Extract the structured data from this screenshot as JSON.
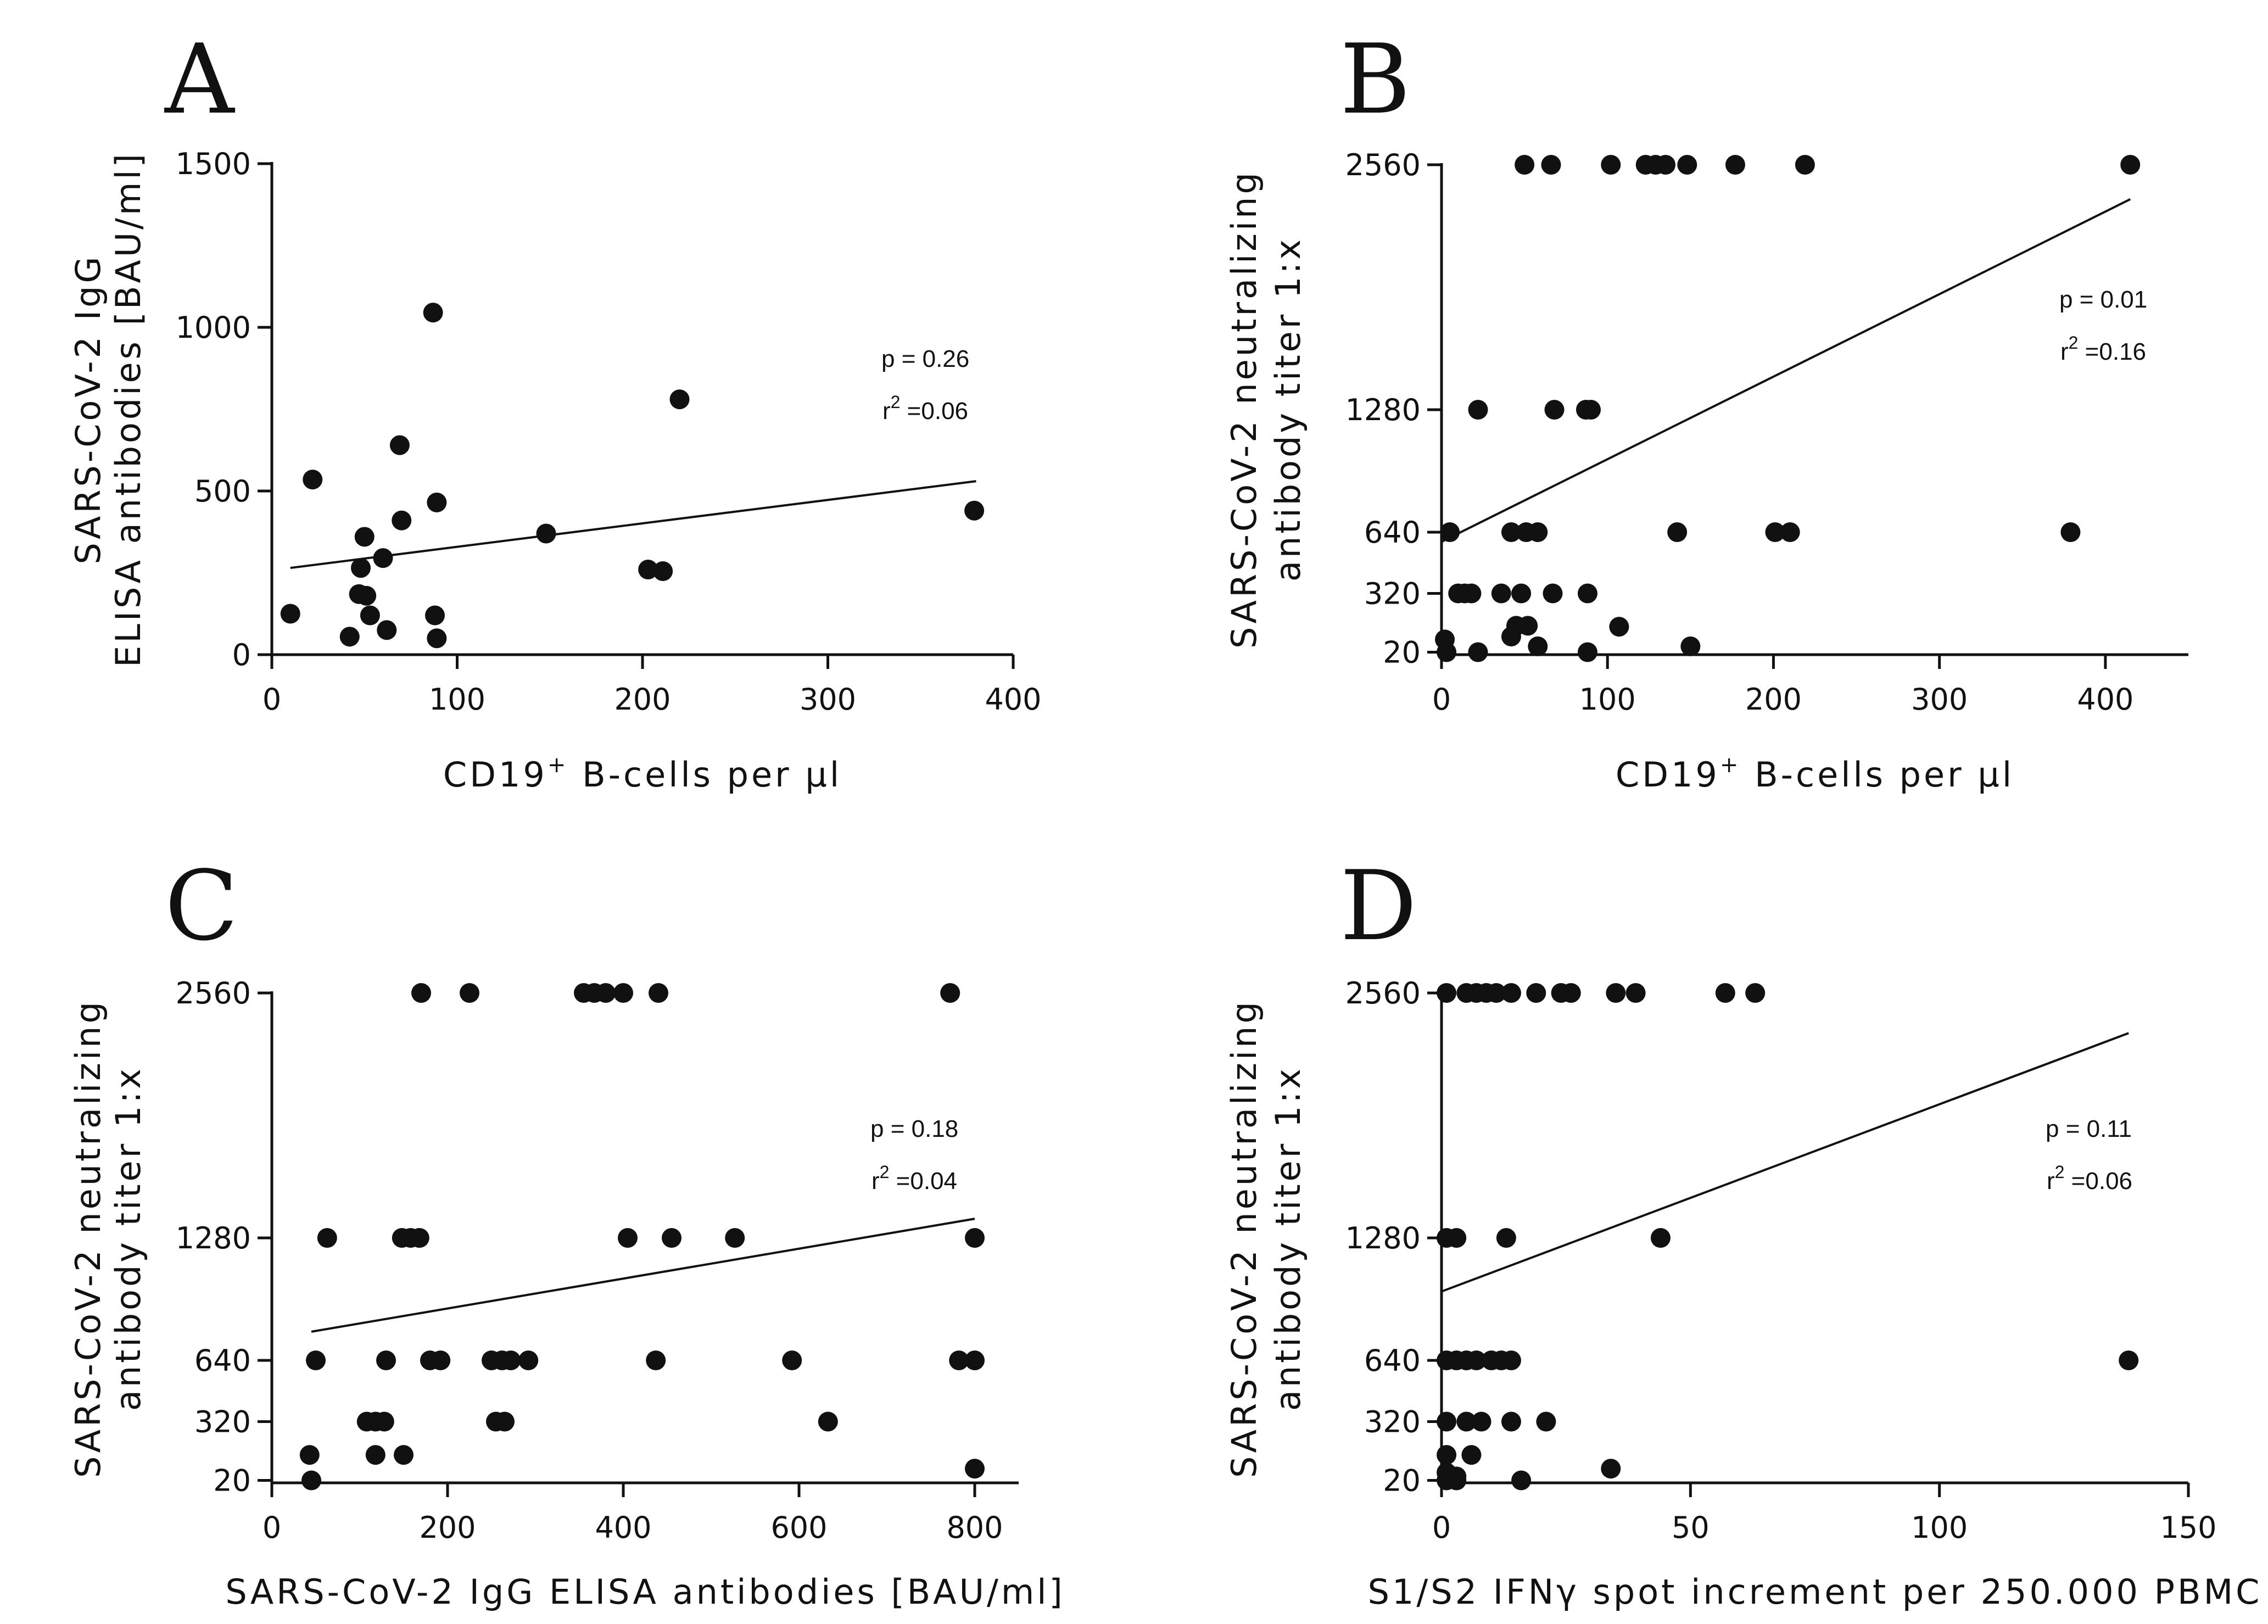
{
  "chart_data": [
    {
      "id": "A",
      "type": "scatter",
      "panel_label": "A",
      "xlabel_main": "CD19",
      "xlabel_sup": "+",
      "xlabel_rest": " B-cells per µl",
      "ylabel_lines": [
        "SARS-CoV-2 IgG",
        "ELISA antibodies [BAU/ml]"
      ],
      "xlim": [
        0,
        400
      ],
      "ylim": [
        0,
        1500
      ],
      "xticks": [
        0,
        100,
        200,
        300,
        400
      ],
      "yticks": [
        0,
        500,
        1000,
        1500
      ],
      "y_tick_labels": [
        "0",
        "500",
        "1000",
        "1500"
      ],
      "stats": {
        "p": "p = 0.26",
        "r2_prefix": "r",
        "r2_sup": "2",
        "r2_value": " =0.06"
      },
      "regression": [
        [
          10,
          265
        ],
        [
          380,
          530
        ]
      ],
      "points": [
        [
          10,
          125
        ],
        [
          22,
          535
        ],
        [
          42,
          55
        ],
        [
          47,
          185
        ],
        [
          48,
          265
        ],
        [
          50,
          360
        ],
        [
          51,
          180
        ],
        [
          53,
          120
        ],
        [
          60,
          295
        ],
        [
          62,
          75
        ],
        [
          70,
          410
        ],
        [
          69,
          640
        ],
        [
          87,
          1045
        ],
        [
          89,
          465
        ],
        [
          88,
          120
        ],
        [
          89,
          50
        ],
        [
          148,
          370
        ],
        [
          203,
          260
        ],
        [
          211,
          255
        ],
        [
          220,
          780
        ],
        [
          379,
          440
        ]
      ]
    },
    {
      "id": "B",
      "type": "scatter",
      "panel_label": "B",
      "xlabel_main": "CD19",
      "xlabel_sup": "+",
      "xlabel_rest": " B-cells per µl",
      "ylabel_lines": [
        "SARS-CoV-2 neutralizing",
        "antibody titer 1:x"
      ],
      "xlim": [
        0,
        450
      ],
      "ylim": [
        0,
        2600
      ],
      "xticks": [
        0,
        100,
        200,
        300,
        400
      ],
      "yticks": [
        20,
        320,
        640,
        1280,
        2560
      ],
      "y_tick_labels": [
        "20",
        "320",
        "640",
        "1280",
        "2560"
      ],
      "stats": {
        "p": "p = 0.01",
        "r2_prefix": "r",
        "r2_sup": "2",
        "r2_value": " =0.16"
      },
      "regression": [
        [
          0,
          590
        ],
        [
          415,
          2380
        ]
      ],
      "points": [
        [
          50,
          2560
        ],
        [
          66,
          2560
        ],
        [
          102,
          2560
        ],
        [
          123,
          2560
        ],
        [
          129,
          2560
        ],
        [
          135,
          2560
        ],
        [
          148,
          2560
        ],
        [
          177,
          2560
        ],
        [
          219,
          2560
        ],
        [
          415,
          2560
        ],
        [
          22,
          1280
        ],
        [
          68,
          1280
        ],
        [
          87,
          1280
        ],
        [
          90,
          1280
        ],
        [
          5,
          640
        ],
        [
          42,
          640
        ],
        [
          51,
          640
        ],
        [
          58,
          640
        ],
        [
          142,
          640
        ],
        [
          201,
          640
        ],
        [
          210,
          640
        ],
        [
          379,
          640
        ],
        [
          10,
          320
        ],
        [
          14,
          320
        ],
        [
          18,
          320
        ],
        [
          36,
          320
        ],
        [
          48,
          320
        ],
        [
          67,
          320
        ],
        [
          88,
          320
        ],
        [
          2,
          85
        ],
        [
          3,
          20
        ],
        [
          22,
          20
        ],
        [
          42,
          100
        ],
        [
          45,
          155
        ],
        [
          52,
          155
        ],
        [
          58,
          50
        ],
        [
          88,
          20
        ],
        [
          107,
          150
        ],
        [
          150,
          50
        ]
      ]
    },
    {
      "id": "C",
      "type": "scatter",
      "panel_label": "C",
      "xlabel_main": "SARS-CoV-2 IgG ELISA antibodies [BAU/ml]",
      "xlabel_sup": "",
      "xlabel_rest": "",
      "ylabel_lines": [
        "SARS-CoV-2 neutralizing",
        "antibody titer 1:x"
      ],
      "xlim": [
        0,
        850
      ],
      "ylim": [
        0,
        2600
      ],
      "xticks": [
        0,
        200,
        400,
        600,
        800
      ],
      "yticks": [
        20,
        320,
        640,
        1280,
        2560
      ],
      "y_tick_labels": [
        "20",
        "320",
        "640",
        "1280",
        "2560"
      ],
      "stats": {
        "p": "p = 0.18",
        "r2_prefix": "r",
        "r2_sup": "2",
        "r2_value": " =0.04"
      },
      "regression": [
        [
          45,
          790
        ],
        [
          800,
          1380
        ]
      ],
      "points": [
        [
          170,
          2560
        ],
        [
          225,
          2560
        ],
        [
          355,
          2560
        ],
        [
          367,
          2560
        ],
        [
          380,
          2560
        ],
        [
          400,
          2560
        ],
        [
          440,
          2560
        ],
        [
          772,
          2560
        ],
        [
          63,
          1280
        ],
        [
          148,
          1280
        ],
        [
          158,
          1280
        ],
        [
          168,
          1280
        ],
        [
          405,
          1280
        ],
        [
          455,
          1280
        ],
        [
          527,
          1280
        ],
        [
          800,
          1280
        ],
        [
          50,
          640
        ],
        [
          130,
          640
        ],
        [
          180,
          640
        ],
        [
          192,
          640
        ],
        [
          250,
          640
        ],
        [
          262,
          640
        ],
        [
          272,
          640
        ],
        [
          292,
          640
        ],
        [
          437,
          640
        ],
        [
          592,
          640
        ],
        [
          782,
          640
        ],
        [
          800,
          640
        ],
        [
          108,
          320
        ],
        [
          118,
          320
        ],
        [
          128,
          320
        ],
        [
          255,
          320
        ],
        [
          265,
          320
        ],
        [
          633,
          320
        ],
        [
          43,
          150
        ],
        [
          45,
          20
        ],
        [
          118,
          150
        ],
        [
          150,
          150
        ],
        [
          800,
          80
        ]
      ]
    },
    {
      "id": "D",
      "type": "scatter",
      "panel_label": "D",
      "xlabel_main": "S1/S2 IFNγ spot increment per 250.000 PBMC",
      "xlabel_sup": "",
      "xlabel_rest": "",
      "ylabel_lines": [
        "SARS-CoV-2 neutralizing",
        "antibody titer 1:x"
      ],
      "xlim": [
        0,
        150
      ],
      "ylim": [
        0,
        2600
      ],
      "xticks": [
        0,
        50,
        100,
        150
      ],
      "yticks": [
        20,
        320,
        640,
        1280,
        2560
      ],
      "y_tick_labels": [
        "20",
        "320",
        "640",
        "1280",
        "2560"
      ],
      "stats": {
        "p": "p = 0.11",
        "r2_prefix": "r",
        "r2_sup": "2",
        "r2_value": " =0.06"
      },
      "regression": [
        [
          0,
          1000
        ],
        [
          138,
          2350
        ]
      ],
      "points": [
        [
          1,
          2560
        ],
        [
          5,
          2560
        ],
        [
          7,
          2560
        ],
        [
          9,
          2560
        ],
        [
          11,
          2560
        ],
        [
          14,
          2560
        ],
        [
          19,
          2560
        ],
        [
          24,
          2560
        ],
        [
          26,
          2560
        ],
        [
          35,
          2560
        ],
        [
          39,
          2560
        ],
        [
          57,
          2560
        ],
        [
          63,
          2560
        ],
        [
          1,
          1280
        ],
        [
          3,
          1280
        ],
        [
          13,
          1280
        ],
        [
          44,
          1280
        ],
        [
          1,
          640
        ],
        [
          3,
          640
        ],
        [
          5,
          640
        ],
        [
          7,
          640
        ],
        [
          10,
          640
        ],
        [
          12,
          640
        ],
        [
          14,
          640
        ],
        [
          138,
          640
        ],
        [
          1,
          320
        ],
        [
          5,
          320
        ],
        [
          8,
          320
        ],
        [
          14,
          320
        ],
        [
          21,
          320
        ],
        [
          1,
          150
        ],
        [
          6,
          150
        ],
        [
          1,
          60
        ],
        [
          3,
          40
        ],
        [
          1,
          20
        ],
        [
          3,
          20
        ],
        [
          16,
          20
        ],
        [
          34,
          80
        ]
      ]
    }
  ]
}
